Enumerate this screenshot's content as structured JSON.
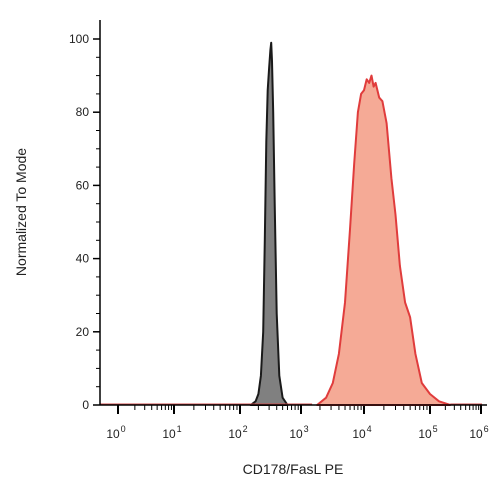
{
  "chart_data": {
    "type": "area",
    "title": "",
    "xlabel": "CD178/FasL PE",
    "ylabel": "Normalized To Mode",
    "x_scale": "biexponential-log",
    "xlim": [
      0,
      1000000
    ],
    "ylim": [
      0,
      100
    ],
    "y_ticks": [
      0,
      20,
      40,
      60,
      80,
      100
    ],
    "x_ticks": [
      {
        "base": "10",
        "exp": "0",
        "value": 1
      },
      {
        "base": "10",
        "exp": "1",
        "value": 10
      },
      {
        "base": "10",
        "exp": "2",
        "value": 100
      },
      {
        "base": "10",
        "exp": "3",
        "value": 1000
      },
      {
        "base": "10",
        "exp": "4",
        "value": 10000
      },
      {
        "base": "10",
        "exp": "5",
        "value": 100000
      },
      {
        "base": "10",
        "exp": "6",
        "value": 1000000
      }
    ],
    "grid": false,
    "legend": "none",
    "series": [
      {
        "fill": "#808080",
        "stroke": "#1a1a1a",
        "points": [
          [
            150,
            0
          ],
          [
            180,
            1
          ],
          [
            200,
            3
          ],
          [
            220,
            8
          ],
          [
            240,
            20
          ],
          [
            255,
            45
          ],
          [
            270,
            72
          ],
          [
            285,
            86
          ],
          [
            300,
            92
          ],
          [
            315,
            97
          ],
          [
            325,
            99
          ],
          [
            335,
            94
          ],
          [
            350,
            80
          ],
          [
            370,
            55
          ],
          [
            400,
            25
          ],
          [
            440,
            8
          ],
          [
            500,
            2
          ],
          [
            600,
            0
          ]
        ]
      },
      {
        "fill": "#f5aa96",
        "stroke": "#e03c3c",
        "points": [
          [
            1800,
            0
          ],
          [
            2500,
            2
          ],
          [
            3200,
            6
          ],
          [
            4000,
            14
          ],
          [
            5000,
            28
          ],
          [
            6000,
            48
          ],
          [
            7000,
            66
          ],
          [
            8000,
            80
          ],
          [
            9000,
            85
          ],
          [
            10000,
            86
          ],
          [
            11000,
            89
          ],
          [
            12000,
            88
          ],
          [
            13000,
            90
          ],
          [
            14000,
            87
          ],
          [
            15000,
            88
          ],
          [
            17000,
            84
          ],
          [
            19000,
            83
          ],
          [
            22000,
            77
          ],
          [
            26000,
            62
          ],
          [
            30000,
            52
          ],
          [
            35000,
            38
          ],
          [
            42000,
            28
          ],
          [
            50000,
            24
          ],
          [
            60000,
            14
          ],
          [
            75000,
            6
          ],
          [
            100000,
            3
          ],
          [
            150000,
            1
          ],
          [
            250000,
            0
          ]
        ]
      }
    ]
  }
}
